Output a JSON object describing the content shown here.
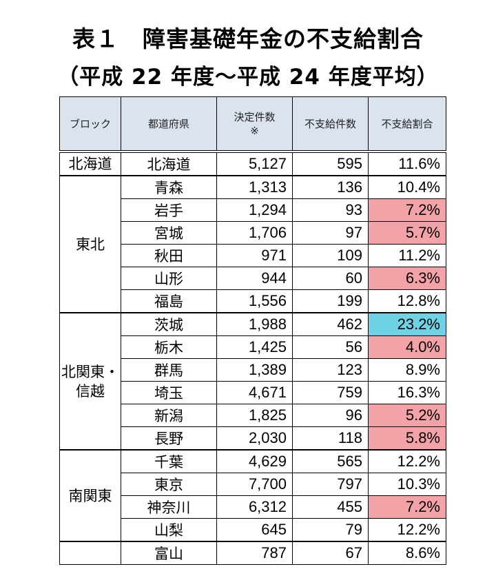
{
  "title_line1": "表１　障害基礎年金の不支給割合",
  "title_line2": "（平成 22 年度～平成 24 年度平均）",
  "headers": {
    "block": "ブロック",
    "prefecture": "都道府県",
    "decisions_line1": "決定件数",
    "decisions_line2": "※",
    "denials": "不支給件数",
    "ratio": "不支給割合"
  },
  "blocks": [
    {
      "name": "北海道",
      "rows": [
        {
          "pref": "北海道",
          "decisions": "5,127",
          "denials": "595",
          "ratio": "11.6%",
          "highlight": ""
        }
      ]
    },
    {
      "name": "東北",
      "rows": [
        {
          "pref": "青森",
          "decisions": "1,313",
          "denials": "136",
          "ratio": "10.4%",
          "highlight": ""
        },
        {
          "pref": "岩手",
          "decisions": "1,294",
          "denials": "93",
          "ratio": "7.2%",
          "highlight": "pink"
        },
        {
          "pref": "宮城",
          "decisions": "1,706",
          "denials": "97",
          "ratio": "5.7%",
          "highlight": "pink"
        },
        {
          "pref": "秋田",
          "decisions": "971",
          "denials": "109",
          "ratio": "11.2%",
          "highlight": ""
        },
        {
          "pref": "山形",
          "decisions": "944",
          "denials": "60",
          "ratio": "6.3%",
          "highlight": "pink"
        },
        {
          "pref": "福島",
          "decisions": "1,556",
          "denials": "199",
          "ratio": "12.8%",
          "highlight": ""
        }
      ]
    },
    {
      "name_line1": "北関東・",
      "name_line2": "信越",
      "rows": [
        {
          "pref": "茨城",
          "decisions": "1,988",
          "denials": "462",
          "ratio": "23.2%",
          "highlight": "cyan"
        },
        {
          "pref": "栃木",
          "decisions": "1,425",
          "denials": "56",
          "ratio": "4.0%",
          "highlight": "pink"
        },
        {
          "pref": "群馬",
          "decisions": "1,389",
          "denials": "123",
          "ratio": "8.9%",
          "highlight": ""
        },
        {
          "pref": "埼玉",
          "decisions": "4,671",
          "denials": "759",
          "ratio": "16.3%",
          "highlight": ""
        },
        {
          "pref": "新潟",
          "decisions": "1,825",
          "denials": "96",
          "ratio": "5.2%",
          "highlight": "pink"
        },
        {
          "pref": "長野",
          "decisions": "2,030",
          "denials": "118",
          "ratio": "5.8%",
          "highlight": "pink"
        }
      ]
    },
    {
      "name": "南関東",
      "rows": [
        {
          "pref": "千葉",
          "decisions": "4,629",
          "denials": "565",
          "ratio": "12.2%",
          "highlight": ""
        },
        {
          "pref": "東京",
          "decisions": "7,700",
          "denials": "797",
          "ratio": "10.3%",
          "highlight": ""
        },
        {
          "pref": "神奈川",
          "decisions": "6,312",
          "denials": "455",
          "ratio": "7.2%",
          "highlight": "pink"
        },
        {
          "pref": "山梨",
          "decisions": "645",
          "denials": "79",
          "ratio": "12.2%",
          "highlight": ""
        }
      ]
    },
    {
      "name": "",
      "rows": [
        {
          "pref": "富山",
          "decisions": "787",
          "denials": "67",
          "ratio": "8.6%",
          "highlight": ""
        }
      ]
    }
  ],
  "colors": {
    "pink_highlight": "#f3a3a7",
    "cyan_highlight": "#6fd3e5",
    "header_bg": "#dbe3ef"
  }
}
